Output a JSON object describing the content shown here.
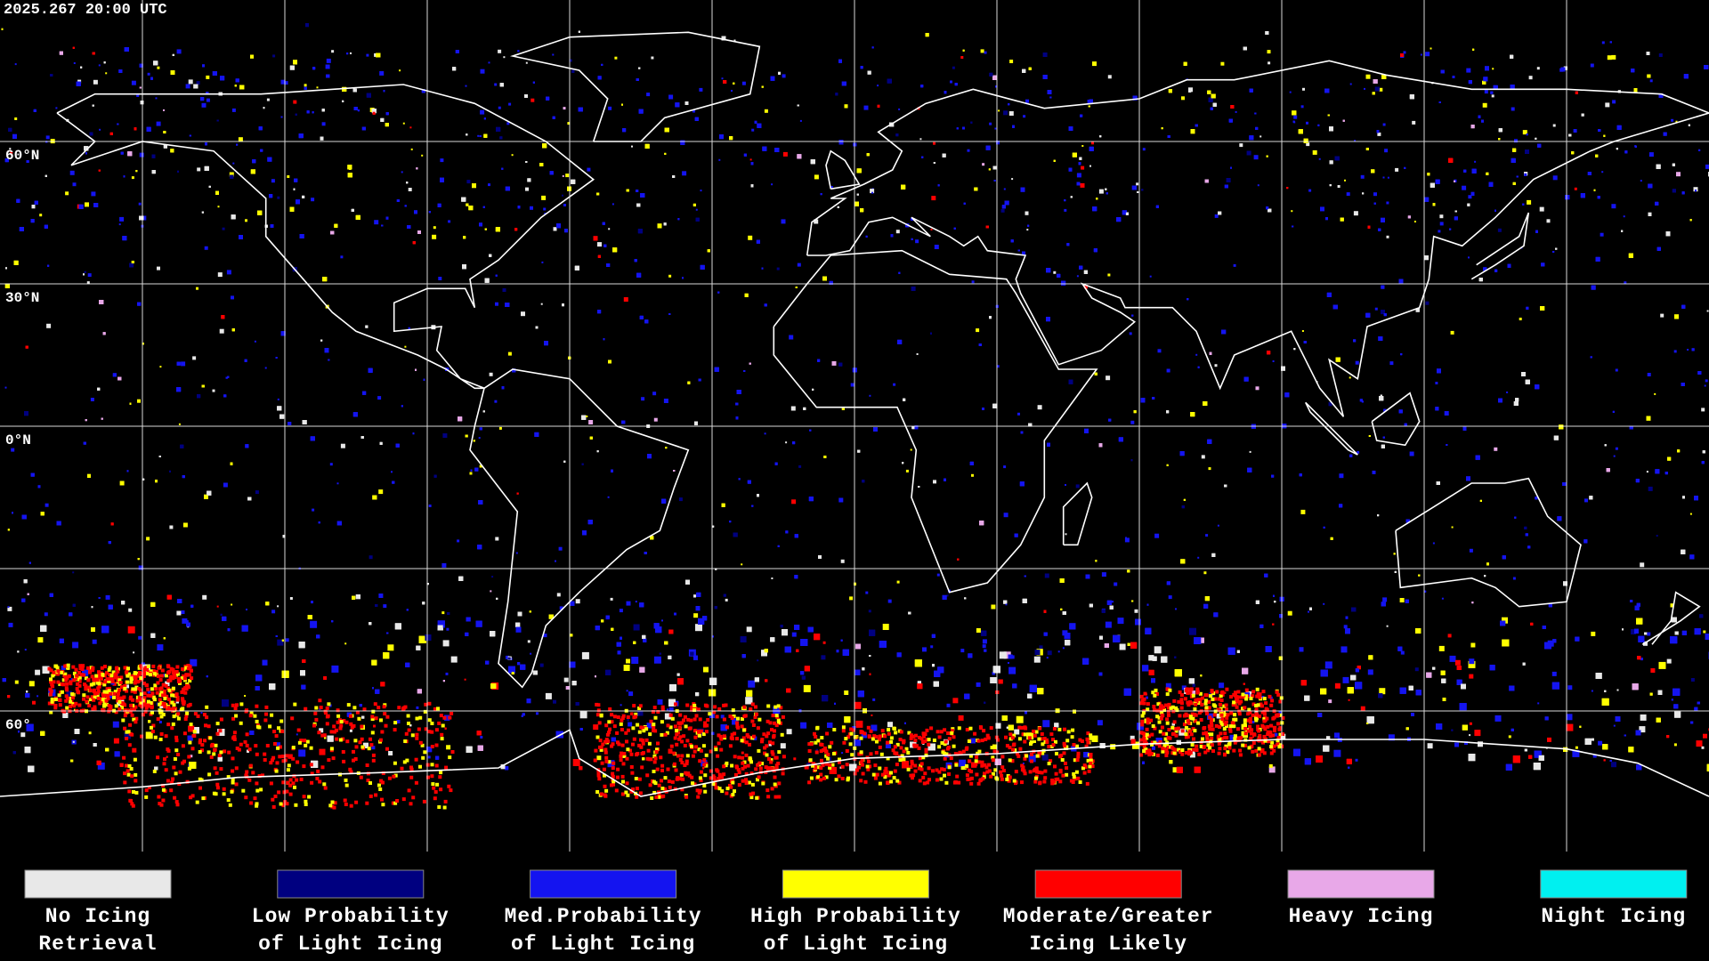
{
  "header": {
    "timestamp": "2025.267 20:00 UTC"
  },
  "map": {
    "lat_labels": [
      "60°N",
      "30°N",
      "0°N",
      "60°"
    ]
  },
  "legend": {
    "items": [
      {
        "label_lines": [
          "No Icing",
          "Retrieval"
        ],
        "color": "#e8e8e8"
      },
      {
        "label_lines": [
          "Low Probability",
          "of Light Icing"
        ],
        "color": "#000080"
      },
      {
        "label_lines": [
          "Med.Probability",
          "of Light Icing"
        ],
        "color": "#1414f0"
      },
      {
        "label_lines": [
          "High Probability",
          "of Light Icing"
        ],
        "color": "#ffff00"
      },
      {
        "label_lines": [
          "Moderate/Greater",
          "Icing Likely"
        ],
        "color": "#ff0000"
      },
      {
        "label_lines": [
          "Heavy Icing"
        ],
        "color": "#e8a8e8"
      },
      {
        "label_lines": [
          "Night Icing"
        ],
        "color": "#00f0f0"
      }
    ]
  }
}
